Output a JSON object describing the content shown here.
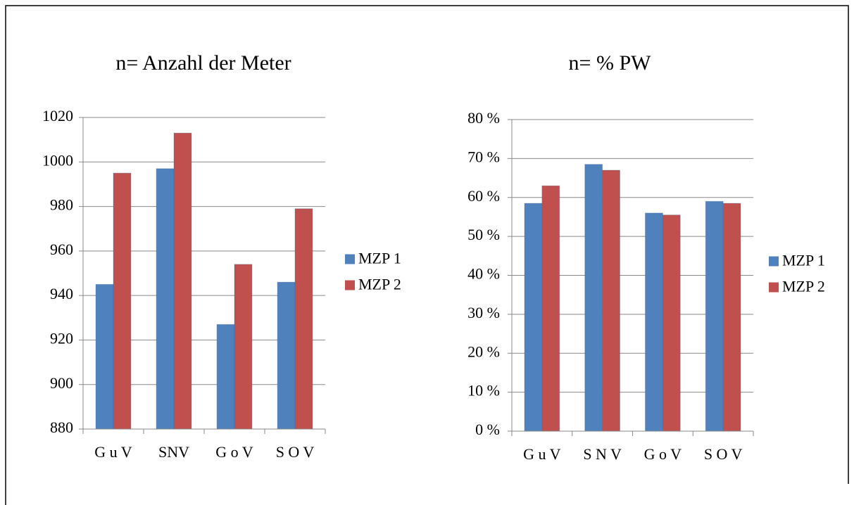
{
  "chart_data": [
    {
      "type": "bar",
      "title": "n= Anzahl der Meter",
      "categories": [
        "G u V",
        "SNV",
        "G o V",
        "S O V"
      ],
      "series": [
        {
          "name": "MZP 1",
          "color": "#4f81bd",
          "values": [
            945,
            997,
            927,
            946
          ]
        },
        {
          "name": "MZP 2",
          "color": "#c0504d",
          "values": [
            995,
            1013,
            954,
            979
          ]
        }
      ],
      "ylim": [
        880,
        1020
      ],
      "yticks": [
        880,
        900,
        920,
        940,
        960,
        980,
        1000,
        1020
      ],
      "grid": true,
      "legend": "right"
    },
    {
      "type": "bar",
      "title": "n= % PW",
      "categories": [
        "G u V",
        "S N V",
        "G o V",
        "S O V"
      ],
      "series": [
        {
          "name": "MZP 1",
          "color": "#4f81bd",
          "values": [
            58.5,
            68.5,
            56,
            59
          ]
        },
        {
          "name": "MZP 2",
          "color": "#c0504d",
          "values": [
            63,
            67,
            55.5,
            58.5
          ]
        }
      ],
      "ylim": [
        0,
        80
      ],
      "yticks": [
        {
          "value": 0,
          "label": "0 %"
        },
        {
          "value": 10,
          "label": "10 %"
        },
        {
          "value": 20,
          "label": "20 %"
        },
        {
          "value": 30,
          "label": "30 %"
        },
        {
          "value": 40,
          "label": "40 %"
        },
        {
          "value": 50,
          "label": "50 %"
        },
        {
          "value": 60,
          "label": "60 %"
        },
        {
          "value": 70,
          "label": "70 %"
        },
        {
          "value": 80,
          "label": "80 %"
        }
      ],
      "grid": true,
      "legend": "right"
    }
  ]
}
